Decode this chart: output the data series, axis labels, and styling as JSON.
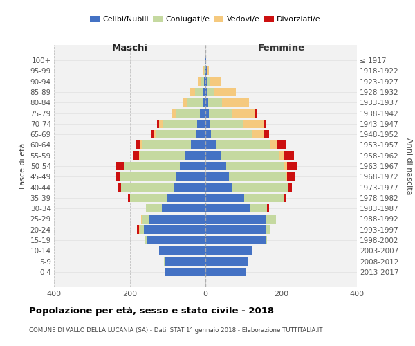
{
  "age_groups": [
    "100+",
    "95-99",
    "90-94",
    "85-89",
    "80-84",
    "75-79",
    "70-74",
    "65-69",
    "60-64",
    "55-59",
    "50-54",
    "45-49",
    "40-44",
    "35-39",
    "30-34",
    "25-29",
    "20-24",
    "15-19",
    "10-14",
    "5-9",
    "0-4"
  ],
  "birth_years": [
    "≤ 1917",
    "1918-1922",
    "1923-1927",
    "1928-1932",
    "1933-1937",
    "1938-1942",
    "1943-1947",
    "1948-1952",
    "1953-1957",
    "1958-1962",
    "1963-1967",
    "1968-1972",
    "1973-1977",
    "1978-1982",
    "1983-1987",
    "1988-1992",
    "1993-1997",
    "1998-2002",
    "2003-2007",
    "2008-2012",
    "2013-2017"
  ],
  "colors": {
    "celibi": "#4472c4",
    "coniugati": "#c5d9a0",
    "vedovi": "#f5c97e",
    "divorziati": "#cc1010",
    "bg_plot": "#f2f2f2"
  },
  "maschi": {
    "celibi": [
      1,
      2,
      3,
      6,
      8,
      14,
      22,
      25,
      38,
      55,
      68,
      78,
      82,
      100,
      115,
      148,
      162,
      155,
      122,
      107,
      106
    ],
    "coniugati": [
      0,
      2,
      9,
      22,
      42,
      65,
      92,
      105,
      130,
      118,
      145,
      148,
      140,
      100,
      42,
      18,
      10,
      3,
      0,
      2,
      0
    ],
    "vedovi": [
      0,
      2,
      8,
      14,
      10,
      10,
      8,
      5,
      3,
      3,
      3,
      0,
      0,
      0,
      0,
      4,
      3,
      0,
      0,
      0,
      0
    ],
    "divorziati": [
      0,
      0,
      0,
      0,
      0,
      0,
      5,
      10,
      12,
      15,
      20,
      12,
      8,
      5,
      0,
      0,
      5,
      0,
      0,
      0,
      0
    ]
  },
  "femmine": {
    "celibi": [
      1,
      3,
      5,
      5,
      8,
      10,
      12,
      15,
      30,
      42,
      55,
      62,
      72,
      102,
      118,
      158,
      158,
      158,
      122,
      112,
      107
    ],
    "coniugati": [
      0,
      2,
      8,
      18,
      35,
      62,
      88,
      108,
      142,
      152,
      152,
      150,
      145,
      105,
      45,
      28,
      14,
      4,
      0,
      0,
      0
    ],
    "vedovi": [
      0,
      5,
      28,
      58,
      72,
      58,
      55,
      30,
      18,
      14,
      8,
      4,
      0,
      0,
      0,
      0,
      0,
      0,
      0,
      0,
      0
    ],
    "divorziati": [
      0,
      0,
      0,
      0,
      0,
      5,
      5,
      15,
      22,
      25,
      28,
      22,
      12,
      5,
      5,
      0,
      0,
      0,
      0,
      0,
      0
    ]
  },
  "title": "Popolazione per età, sesso e stato civile - 2018",
  "subtitle": "COMUNE DI VALLO DELLA LUCANIA (SA) - Dati ISTAT 1° gennaio 2018 - Elaborazione TUTTITALIA.IT",
  "xlabel_left": "Maschi",
  "xlabel_right": "Femmine",
  "ylabel_left": "Fasce di età",
  "ylabel_right": "Anni di nascita",
  "xlim": 400,
  "legend_labels": [
    "Celibi/Nubili",
    "Coniugati/e",
    "Vedovi/e",
    "Divorziati/e"
  ]
}
